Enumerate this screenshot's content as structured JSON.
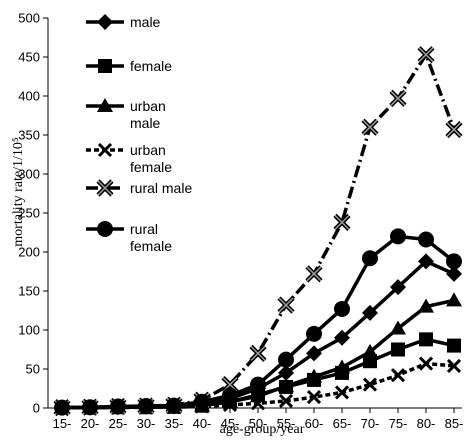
{
  "chart_data": {
    "type": "line",
    "xlabel": "age-group/year",
    "ylabel": "mortality rate/1/10⁵",
    "ylim": [
      0,
      500
    ],
    "yticks": [
      0,
      50,
      100,
      150,
      200,
      250,
      300,
      350,
      400,
      450,
      500
    ],
    "categories": [
      "15-",
      "20-",
      "25-",
      "30-",
      "35-",
      "40-",
      "45-",
      "50-",
      "55-",
      "60-",
      "65-",
      "70-",
      "75-",
      "80-",
      "85-"
    ],
    "grid": false,
    "legend_position": "top-left",
    "series": [
      {
        "name": "male",
        "marker": "diamond",
        "dash": "solid",
        "values": [
          0.5,
          0.5,
          1,
          1.5,
          2,
          5,
          12,
          25,
          45,
          70,
          90,
          122,
          155,
          188,
          172
        ]
      },
      {
        "name": "female",
        "marker": "square",
        "dash": "solid",
        "values": [
          0.5,
          0.5,
          1,
          1,
          1.5,
          3,
          8,
          17,
          27,
          36,
          45,
          60,
          75,
          88,
          80
        ]
      },
      {
        "name": "urban male",
        "marker": "triangle",
        "dash": "solid",
        "values": [
          0.5,
          0.5,
          1,
          1,
          1.5,
          3,
          8,
          15,
          28,
          40,
          52,
          72,
          102,
          130,
          138
        ]
      },
      {
        "name": "urban female",
        "marker": "x",
        "dash": "dashed",
        "values": [
          0.5,
          0.5,
          0.5,
          1,
          1,
          2,
          4,
          6,
          9,
          14,
          20,
          30,
          42,
          57,
          54
        ]
      },
      {
        "name": "rural male",
        "marker": "star-x",
        "dash": "dash-dot",
        "values": [
          0.5,
          1,
          2,
          2.5,
          3.5,
          10,
          30,
          70,
          132,
          172,
          238,
          360,
          397,
          453,
          357
        ]
      },
      {
        "name": "rural female",
        "marker": "circle",
        "dash": "solid",
        "values": [
          0.5,
          1,
          2,
          2.5,
          3,
          8,
          16,
          30,
          62,
          95,
          127,
          192,
          220,
          216,
          188
        ]
      }
    ]
  }
}
